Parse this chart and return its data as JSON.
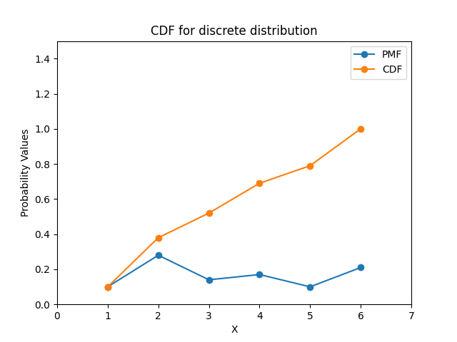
{
  "title": "CDF for discrete distribution",
  "xlabel": "X",
  "ylabel": "Probability Values",
  "x": [
    1,
    2,
    3,
    4,
    5,
    6
  ],
  "pmf": [
    0.1,
    0.28,
    0.14,
    0.17,
    0.1,
    0.21
  ],
  "cdf": [
    0.1,
    0.38,
    0.52,
    0.69,
    0.79,
    1.0
  ],
  "pmf_color": "#1f77b4",
  "cdf_color": "#ff7f0e",
  "pmf_label": "PMF",
  "cdf_label": "CDF",
  "xlim": [
    0,
    7
  ],
  "ylim": [
    0,
    1.5
  ],
  "marker": "o",
  "linewidth": 1.5,
  "figwidth": 6.4,
  "figheight": 4.8,
  "dpi": 100
}
